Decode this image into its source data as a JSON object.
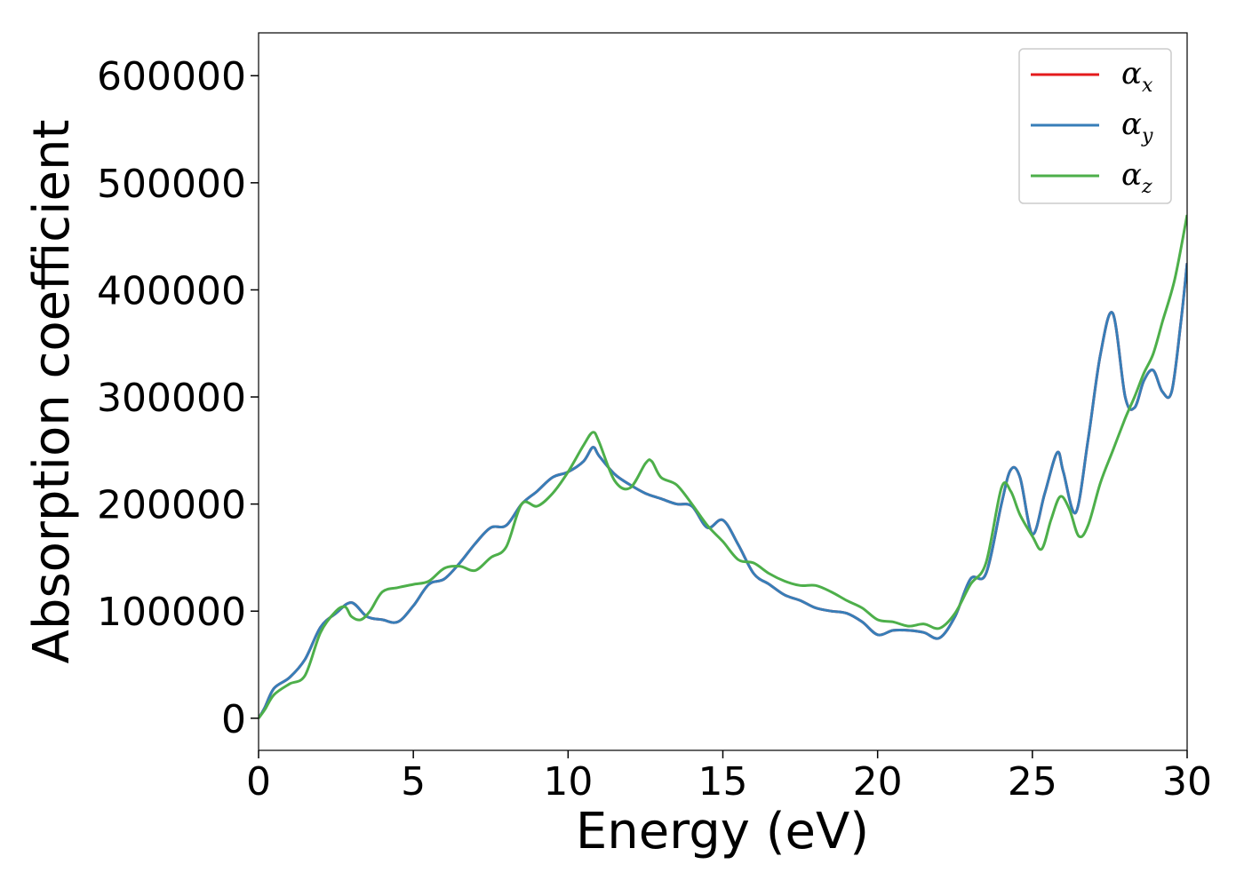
{
  "chart_data": {
    "type": "line",
    "title": "",
    "xlabel": "Energy (eV)",
    "ylabel": "Absorption coefficient",
    "xlim": [
      0,
      30
    ],
    "ylim": [
      -30000,
      640000
    ],
    "xticks": [
      0,
      5,
      10,
      15,
      20,
      25,
      30
    ],
    "yticks": [
      0,
      100000,
      200000,
      300000,
      400000,
      500000,
      600000
    ],
    "grid": false,
    "legend_position": "top-right",
    "series": [
      {
        "name": "α",
        "subscript": "x",
        "color": "#e41a1c",
        "x": [
          0,
          0.2,
          0.5,
          1.0,
          1.5,
          2.0,
          2.5,
          3.0,
          3.5,
          4.0,
          4.5,
          5.0,
          5.5,
          6.0,
          6.5,
          7.0,
          7.5,
          8.0,
          8.5,
          9.0,
          9.5,
          10.0,
          10.5,
          10.8,
          11.0,
          11.5,
          12.0,
          12.5,
          13.0,
          13.5,
          14.0,
          14.5,
          15.0,
          15.5,
          16.0,
          16.5,
          17.0,
          17.5,
          18.0,
          18.5,
          19.0,
          19.5,
          20.0,
          20.5,
          21.0,
          21.5,
          22.0,
          22.5,
          23.0,
          23.5,
          24.0,
          24.3,
          24.6,
          25.0,
          25.4,
          25.8,
          26.0,
          26.4,
          26.8,
          27.2,
          27.6,
          28.0,
          28.3,
          28.6,
          28.9,
          29.2,
          29.5,
          29.8,
          30.0
        ],
        "y": [
          0,
          10000,
          28000,
          38000,
          55000,
          85000,
          98000,
          108000,
          95000,
          92000,
          90000,
          105000,
          125000,
          130000,
          145000,
          163000,
          178000,
          180000,
          200000,
          212000,
          225000,
          230000,
          240000,
          253000,
          245000,
          228000,
          218000,
          210000,
          205000,
          200000,
          198000,
          178000,
          185000,
          162000,
          135000,
          125000,
          115000,
          110000,
          103000,
          100000,
          98000,
          90000,
          78000,
          82000,
          82000,
          80000,
          75000,
          95000,
          130000,
          135000,
          200000,
          232000,
          225000,
          172000,
          210000,
          248000,
          230000,
          192000,
          260000,
          340000,
          378000,
          300000,
          290000,
          315000,
          325000,
          305000,
          305000,
          370000,
          425000
        ]
      },
      {
        "name": "α",
        "subscript": "y",
        "color": "#377eb8",
        "x": [
          0,
          0.2,
          0.5,
          1.0,
          1.5,
          2.0,
          2.5,
          3.0,
          3.5,
          4.0,
          4.5,
          5.0,
          5.5,
          6.0,
          6.5,
          7.0,
          7.5,
          8.0,
          8.5,
          9.0,
          9.5,
          10.0,
          10.5,
          10.8,
          11.0,
          11.5,
          12.0,
          12.5,
          13.0,
          13.5,
          14.0,
          14.5,
          15.0,
          15.5,
          16.0,
          16.5,
          17.0,
          17.5,
          18.0,
          18.5,
          19.0,
          19.5,
          20.0,
          20.5,
          21.0,
          21.5,
          22.0,
          22.5,
          23.0,
          23.5,
          24.0,
          24.3,
          24.6,
          25.0,
          25.4,
          25.8,
          26.0,
          26.4,
          26.8,
          27.2,
          27.6,
          28.0,
          28.3,
          28.6,
          28.9,
          29.2,
          29.5,
          29.8,
          30.0
        ],
        "y": [
          0,
          10000,
          28000,
          38000,
          55000,
          85000,
          98000,
          108000,
          95000,
          92000,
          90000,
          105000,
          125000,
          130000,
          145000,
          163000,
          178000,
          180000,
          200000,
          212000,
          225000,
          230000,
          240000,
          253000,
          245000,
          228000,
          218000,
          210000,
          205000,
          200000,
          198000,
          178000,
          185000,
          162000,
          135000,
          125000,
          115000,
          110000,
          103000,
          100000,
          98000,
          90000,
          78000,
          82000,
          82000,
          80000,
          75000,
          95000,
          130000,
          135000,
          200000,
          232000,
          225000,
          172000,
          210000,
          248000,
          230000,
          192000,
          260000,
          340000,
          378000,
          300000,
          290000,
          315000,
          325000,
          305000,
          305000,
          370000,
          425000
        ]
      },
      {
        "name": "α",
        "subscript": "z",
        "color": "#4daf4a",
        "x": [
          0,
          0.2,
          0.5,
          1.0,
          1.5,
          2.0,
          2.5,
          2.8,
          3.0,
          3.3,
          3.6,
          4.0,
          4.5,
          5.0,
          5.5,
          6.0,
          6.5,
          7.0,
          7.5,
          8.0,
          8.5,
          9.0,
          9.5,
          10.0,
          10.5,
          10.8,
          11.0,
          11.5,
          12.0,
          12.5,
          12.7,
          13.0,
          13.5,
          14.0,
          14.5,
          15.0,
          15.5,
          16.0,
          16.5,
          17.0,
          17.5,
          18.0,
          18.5,
          19.0,
          19.5,
          20.0,
          20.5,
          21.0,
          21.5,
          22.0,
          22.5,
          23.0,
          23.5,
          24.0,
          24.3,
          24.6,
          25.0,
          25.3,
          25.6,
          25.9,
          26.2,
          26.5,
          26.8,
          27.2,
          27.6,
          28.0,
          28.3,
          28.6,
          28.9,
          29.2,
          29.6,
          30.0
        ],
        "y": [
          0,
          8000,
          22000,
          32000,
          40000,
          80000,
          100000,
          104000,
          95000,
          92000,
          100000,
          118000,
          122000,
          125000,
          128000,
          140000,
          142000,
          138000,
          150000,
          160000,
          200000,
          198000,
          210000,
          230000,
          255000,
          267000,
          258000,
          222000,
          215000,
          238000,
          240000,
          225000,
          218000,
          200000,
          180000,
          165000,
          148000,
          145000,
          135000,
          128000,
          124000,
          124000,
          118000,
          110000,
          103000,
          92000,
          90000,
          86000,
          88000,
          84000,
          98000,
          125000,
          145000,
          215000,
          212000,
          190000,
          170000,
          158000,
          185000,
          207000,
          195000,
          170000,
          180000,
          220000,
          250000,
          280000,
          300000,
          322000,
          340000,
          370000,
          410000,
          470000
        ]
      }
    ]
  }
}
